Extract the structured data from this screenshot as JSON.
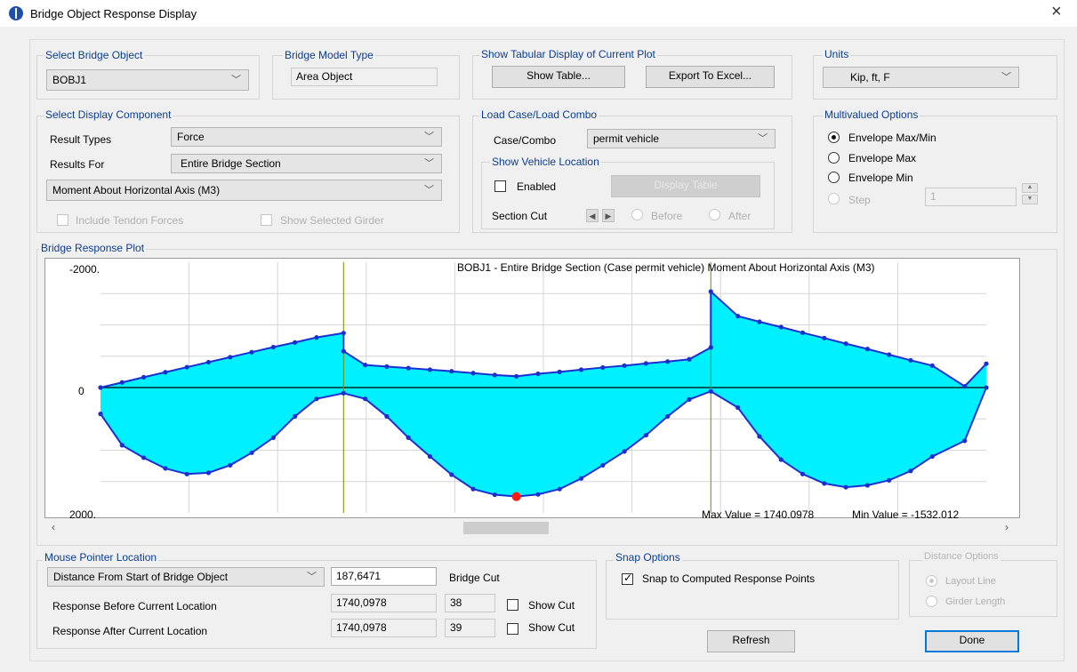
{
  "window": {
    "title": "Bridge Object Response Display"
  },
  "select_bridge_object": {
    "label": "Select Bridge Object",
    "value": "BOBJ1"
  },
  "bridge_model_type": {
    "label": "Bridge Model Type",
    "value": "Area Object"
  },
  "tabular_display": {
    "label": "Show Tabular Display of Current Plot",
    "show_table": "Show Table...",
    "export": "Export To Excel..."
  },
  "units": {
    "label": "Units",
    "value": "Kip, ft, F"
  },
  "display_component": {
    "label": "Select Display Component",
    "result_types_label": "Result Types",
    "result_types_value": "Force",
    "results_for_label": "Results For",
    "results_for_value": "Entire Bridge Section",
    "component_value": "Moment About Horizontal Axis  (M3)",
    "include_tendon": "Include Tendon Forces",
    "show_selected_girder": "Show Selected Girder"
  },
  "load_case": {
    "label": "Load Case/Load Combo",
    "case_label": "Case/Combo",
    "case_value": "permit vehicle",
    "vehicle_group_label": "Show Vehicle Location",
    "enabled_label": "Enabled",
    "display_table": "Display Table",
    "section_cut_label": "Section Cut",
    "before": "Before",
    "after": "After"
  },
  "multivalued": {
    "label": "Multivalued Options",
    "opt1": "Envelope Max/Min",
    "opt2": "Envelope Max",
    "opt3": "Envelope Min",
    "step_label": "Step",
    "step_value": "1"
  },
  "plot": {
    "group_label": "Bridge Response Plot",
    "title": "BOBJ1 - Entire Bridge Section   (Case permit vehicle)   Moment About Horizontal Axis  (M3)",
    "y_top": "-2000.",
    "y_zero": "0",
    "y_bottom": "2000.",
    "max_text": "Max Value = 1740.0978",
    "min_text": "Min Value = -1532.012"
  },
  "chart_data": {
    "type": "area",
    "y_range": [
      -2000,
      2000
    ],
    "y_inverted": true,
    "x_range": [
      0,
      328
    ],
    "grid": true,
    "vertical_markers_x": [
      90,
      226
    ],
    "highlight_point": {
      "x": 154,
      "y": 1740
    },
    "series": [
      {
        "name": "Envelope Min",
        "x": [
          0,
          8,
          16,
          24,
          32,
          40,
          48,
          56,
          64,
          72,
          80,
          90,
          90,
          98,
          106,
          114,
          122,
          130,
          138,
          146,
          154,
          162,
          170,
          178,
          186,
          194,
          202,
          210,
          218,
          226,
          226,
          236,
          244,
          252,
          260,
          268,
          276,
          284,
          292,
          300,
          308,
          320,
          328
        ],
        "y": [
          0,
          -82,
          -165,
          -245,
          -325,
          -405,
          -485,
          -565,
          -645,
          -720,
          -800,
          -870,
          -580,
          -360,
          -335,
          -310,
          -285,
          -260,
          -230,
          -200,
          -180,
          -220,
          -250,
          -285,
          -320,
          -350,
          -385,
          -415,
          -450,
          -640,
          -1532,
          -1140,
          -1050,
          -965,
          -875,
          -790,
          -700,
          -615,
          -525,
          -435,
          -350,
          -20,
          -380
        ]
      },
      {
        "name": "Envelope Max",
        "x": [
          0,
          8,
          16,
          24,
          32,
          40,
          48,
          56,
          64,
          72,
          80,
          90,
          98,
          106,
          114,
          122,
          130,
          138,
          146,
          154,
          162,
          170,
          178,
          186,
          194,
          202,
          210,
          218,
          226,
          236,
          244,
          252,
          260,
          268,
          276,
          284,
          292,
          300,
          308,
          320,
          328
        ],
        "y": [
          420,
          920,
          1120,
          1290,
          1380,
          1360,
          1240,
          1040,
          800,
          460,
          180,
          90,
          180,
          460,
          800,
          1100,
          1390,
          1620,
          1710,
          1740,
          1705,
          1620,
          1450,
          1240,
          1020,
          760,
          460,
          190,
          60,
          320,
          780,
          1150,
          1380,
          1530,
          1590,
          1560,
          1480,
          1330,
          1100,
          850,
          0
        ]
      }
    ]
  },
  "mouse_pointer": {
    "label": "Mouse Pointer Location",
    "distance_combo": "Distance From Start of Bridge Object",
    "distance_value": "187,6471",
    "bridge_cut_label": "Bridge Cut",
    "before_label": "Response Before Current Location",
    "before_value": "1740,0978",
    "before_cut": "38",
    "after_label": "Response After Current Location",
    "after_value": "1740,0978",
    "after_cut": "39",
    "show_cut": "Show Cut"
  },
  "snap": {
    "label": "Snap Options",
    "snap_text": "Snap to Computed Response Points"
  },
  "distance_options": {
    "label": "Distance Options",
    "layout_line": "Layout Line",
    "girder_length": "Girder Length"
  },
  "buttons": {
    "refresh": "Refresh",
    "done": "Done"
  }
}
